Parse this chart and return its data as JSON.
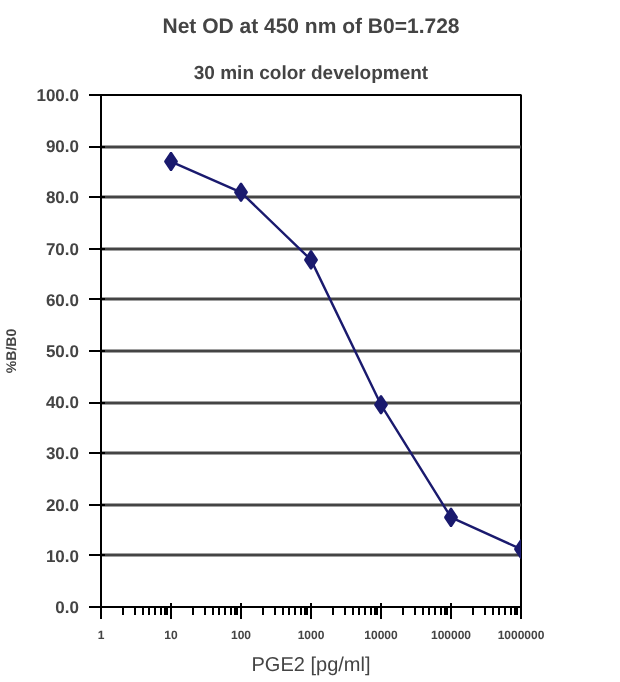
{
  "chart_data": {
    "type": "line",
    "title": "Net OD at 450 nm of B0=1.728",
    "subtitle": "30 min color development",
    "xlabel": "PGE2 [pg/ml]",
    "ylabel": "%B/B0",
    "x": [
      10,
      100,
      1000,
      10000,
      100000,
      1000000
    ],
    "series": [
      {
        "color": "#1a1a6e",
        "values": [
          87.0,
          81.0,
          67.8,
          39.5,
          17.5,
          11.3
        ]
      }
    ],
    "log": "x",
    "xlim": [
      1,
      1000000
    ],
    "xticks": [
      1,
      10,
      100,
      1000,
      10000,
      100000,
      1000000
    ],
    "ylim": [
      0,
      100
    ],
    "yticks": [
      {
        "value": 0,
        "label": "0.0"
      },
      {
        "value": 10,
        "label": "10.0"
      },
      {
        "value": 20,
        "label": "20.0"
      },
      {
        "value": 30,
        "label": "30.0"
      },
      {
        "value": 40,
        "label": "40.0"
      },
      {
        "value": 50,
        "label": "50.0"
      },
      {
        "value": 60,
        "label": "60.0"
      },
      {
        "value": 70,
        "label": "70.0"
      },
      {
        "value": 80,
        "label": "80.0"
      },
      {
        "value": 90,
        "label": "90.0"
      },
      {
        "value": 100,
        "label": "100.0"
      }
    ],
    "grid": "y",
    "marker": "diamond",
    "line_style": "solid"
  }
}
